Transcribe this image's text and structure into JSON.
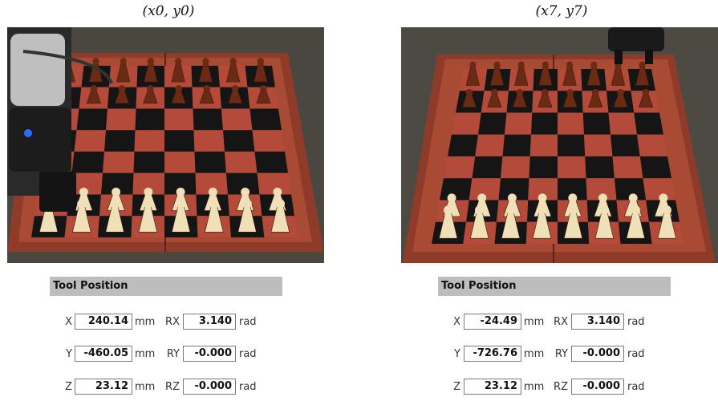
{
  "panels": [
    {
      "caption": "(x0, y0)",
      "tool_position": {
        "title": "Tool Position",
        "rows": [
          {
            "axis": "X",
            "value": "240.14",
            "unit": "mm",
            "raxis": "RX",
            "rvalue": "3.140",
            "runit": "rad"
          },
          {
            "axis": "Y",
            "value": "-460.05",
            "unit": "mm",
            "raxis": "RY",
            "rvalue": "-0.000",
            "runit": "rad"
          },
          {
            "axis": "Z",
            "value": "23.12",
            "unit": "mm",
            "raxis": "RZ",
            "rvalue": "-0.000",
            "runit": "rad"
          }
        ]
      }
    },
    {
      "caption": "(x7, y7)",
      "tool_position": {
        "title": "Tool Position",
        "rows": [
          {
            "axis": "X",
            "value": "-24.49",
            "unit": "mm",
            "raxis": "RX",
            "rvalue": "3.140",
            "runit": "rad"
          },
          {
            "axis": "Y",
            "value": "-726.76",
            "unit": "mm",
            "raxis": "RY",
            "rvalue": "-0.000",
            "runit": "rad"
          },
          {
            "axis": "Z",
            "value": "23.12",
            "unit": "mm",
            "raxis": "RZ",
            "rvalue": "-0.000",
            "runit": "rad"
          }
        ]
      }
    }
  ],
  "colors": {
    "board_frame": "#8e3b2a",
    "dark_square": "#151515",
    "light_square": "#b34a3a",
    "dark_piece": "#6a2a14",
    "light_piece": "#efe0b8",
    "header_bg": "#bdbdbd"
  }
}
